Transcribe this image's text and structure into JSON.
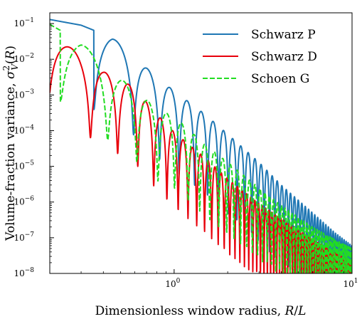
{
  "chart_data": {
    "type": "line",
    "xlabel": "Dimensionless window radius, R/L",
    "ylabel": "Volume-fraction variance, σ²_V(R)",
    "xscale": "log",
    "yscale": "log",
    "xlim": [
      0.2,
      10
    ],
    "ylim": [
      1e-08,
      0.2
    ],
    "x_ticks": [
      {
        "value": 1,
        "base": "10",
        "exp": "0"
      },
      {
        "value": 10,
        "base": "10",
        "exp": "1"
      }
    ],
    "y_ticks": [
      {
        "value": 0.1,
        "base": "10",
        "exp": "−1"
      },
      {
        "value": 0.01,
        "base": "10",
        "exp": "−2"
      },
      {
        "value": 0.001,
        "base": "10",
        "exp": "−3"
      },
      {
        "value": 0.0001,
        "base": "10",
        "exp": "−4"
      },
      {
        "value": 1e-05,
        "base": "10",
        "exp": "−5"
      },
      {
        "value": 1e-06,
        "base": "10",
        "exp": "−6"
      },
      {
        "value": 1e-07,
        "base": "10",
        "exp": "−7"
      },
      {
        "value": 1e-08,
        "base": "10",
        "exp": "−8"
      }
    ],
    "legend_position": "top-right",
    "grid": false,
    "series": [
      {
        "name": "Schwarz P",
        "color": "#1f77b4",
        "dash": "solid",
        "first_min_x": 0.71,
        "period": 0.2375,
        "envelope": [
          [
            0.2,
            0.13
          ],
          [
            0.3,
            0.09
          ],
          [
            0.45,
            0.04
          ],
          [
            0.6,
            0.012
          ],
          [
            0.8,
            0.003
          ],
          [
            1.0,
            0.0013
          ],
          [
            1.5,
            0.00028
          ],
          [
            2.0,
            8e-05
          ],
          [
            3.0,
            1.3e-05
          ],
          [
            4.0,
            3e-06
          ],
          [
            6.0,
            5e-07
          ],
          [
            8.0,
            1.4e-07
          ],
          [
            10.0,
            6e-08
          ]
        ],
        "dip_depth": 0.006
      },
      {
        "name": "Schwarz D",
        "color": "#e8000b",
        "dash": "solid",
        "first_min_x": 0.41,
        "period": 0.143,
        "envelope": [
          [
            0.2,
            0.065
          ],
          [
            0.3,
            0.012
          ],
          [
            0.4,
            0.0045
          ],
          [
            0.5,
            0.0026
          ],
          [
            0.6,
            0.0016
          ],
          [
            0.75,
            0.0004
          ],
          [
            1.0,
            9e-05
          ],
          [
            1.5,
            1.7e-05
          ],
          [
            2.0,
            4.5e-06
          ],
          [
            3.0,
            9e-07
          ],
          [
            4.0,
            3.5e-07
          ],
          [
            6.0,
            9e-08
          ],
          [
            10.0,
            2e-08
          ]
        ],
        "dip_depth": 0.008
      },
      {
        "name": "Schoen G",
        "color": "#22dd22",
        "dash": "dashed",
        "first_min_x": 0.52,
        "period": 0.194,
        "envelope": [
          [
            0.2,
            0.095
          ],
          [
            0.3,
            0.03
          ],
          [
            0.45,
            0.004
          ],
          [
            0.6,
            0.0015
          ],
          [
            0.8,
            0.0004
          ],
          [
            1.0,
            0.00025
          ],
          [
            1.5,
            4e-05
          ],
          [
            2.0,
            1.3e-05
          ],
          [
            3.0,
            2.5e-06
          ],
          [
            4.0,
            8e-07
          ],
          [
            6.0,
            2e-07
          ],
          [
            8.0,
            9e-08
          ],
          [
            10.0,
            5e-08
          ]
        ],
        "dip_depth": 0.01
      }
    ]
  }
}
